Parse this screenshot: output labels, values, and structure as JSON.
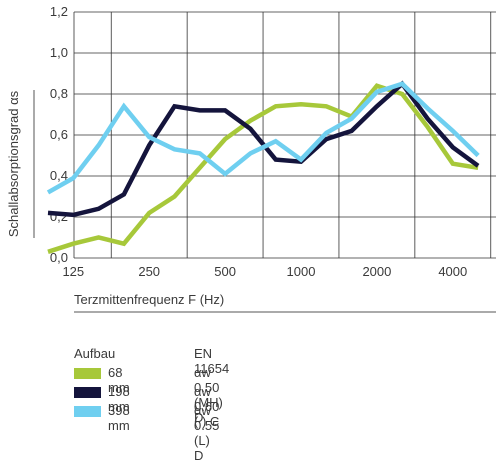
{
  "chart_data": {
    "type": "line",
    "ylabel": "Schallabsorptionsgrad αs",
    "xlabel": "Terzmittenfrequenz F (Hz)",
    "ylim": [
      0,
      1.2
    ],
    "yticks": [
      "0,0",
      "0,2",
      "0,4",
      "0,6",
      "0,8",
      "1,0",
      "1,2"
    ],
    "xticks": [
      "125",
      "250",
      "500",
      "1000",
      "2000",
      "4000"
    ],
    "grid": true,
    "x": [
      100,
      125,
      160,
      200,
      250,
      315,
      400,
      500,
      630,
      800,
      1000,
      1250,
      1600,
      2000,
      2500,
      3150,
      4000,
      5000
    ],
    "series": [
      {
        "name": "68 mm",
        "color": "#a7c83a",
        "values": [
          0.03,
          0.07,
          0.1,
          0.07,
          0.22,
          0.3,
          0.44,
          0.58,
          0.67,
          0.74,
          0.75,
          0.74,
          0.69,
          0.84,
          0.8,
          0.64,
          0.46,
          0.44
        ]
      },
      {
        "name": "198 mm",
        "color": "#14143c",
        "values": [
          0.22,
          0.21,
          0.24,
          0.31,
          0.55,
          0.74,
          0.72,
          0.72,
          0.63,
          0.48,
          0.47,
          0.58,
          0.62,
          0.74,
          0.85,
          0.68,
          0.54,
          0.45
        ]
      },
      {
        "name": "398 mm",
        "color": "#6fcff0",
        "values": [
          0.32,
          0.39,
          0.55,
          0.74,
          0.59,
          0.53,
          0.51,
          0.41,
          0.51,
          0.57,
          0.48,
          0.61,
          0.68,
          0.81,
          0.85,
          0.73,
          0.62,
          0.5
        ]
      }
    ]
  },
  "legend": {
    "header_left": "Aufbau",
    "header_right": "EN 11654",
    "items": [
      {
        "size": "68 mm",
        "rating": "αw 0.50 (MH) D",
        "color": "#a7c83a"
      },
      {
        "size": "198 mm",
        "rating": "αw 0.60 ( ) C",
        "color": "#14143c"
      },
      {
        "size": "398 mm",
        "rating": "αw 0.55 (L) D",
        "color": "#6fcff0"
      }
    ]
  }
}
